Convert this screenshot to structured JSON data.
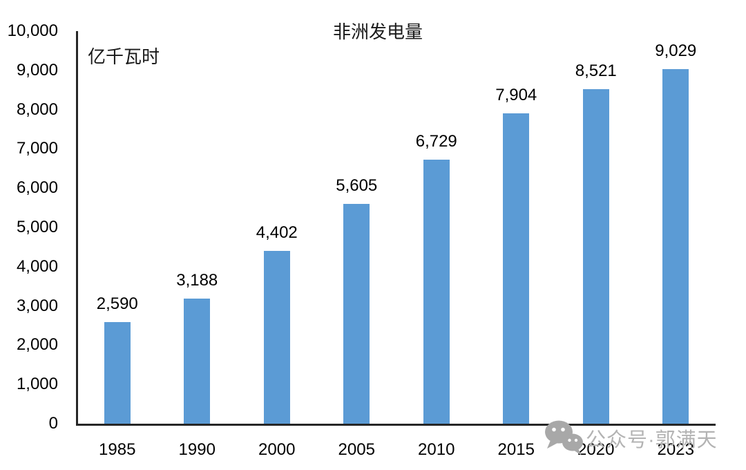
{
  "chart_data": {
    "type": "bar",
    "title": "非洲发电量",
    "unit_label": "亿千瓦时",
    "categories": [
      "1985",
      "1990",
      "2000",
      "2005",
      "2010",
      "2015",
      "2020",
      "2023"
    ],
    "values": [
      2590,
      3188,
      4402,
      5605,
      6729,
      7904,
      8521,
      9029
    ],
    "value_labels": [
      "2,590",
      "3,188",
      "4,402",
      "5,605",
      "6,729",
      "7,904",
      "8,521",
      "9,029"
    ],
    "ylim": [
      0,
      10000
    ],
    "y_tick_interval": 1000,
    "y_tick_labels": [
      "0",
      "1,000",
      "2,000",
      "3,000",
      "4,000",
      "5,000",
      "6,000",
      "7,000",
      "8,000",
      "9,000",
      "10,000"
    ],
    "grid": false,
    "legend": false,
    "bar_color": "#5B9BD5",
    "axis_color": "#262626"
  },
  "watermark": {
    "icon": "wechat-icon",
    "text": "公众号·郭满天",
    "color": "#b3b3b3"
  }
}
